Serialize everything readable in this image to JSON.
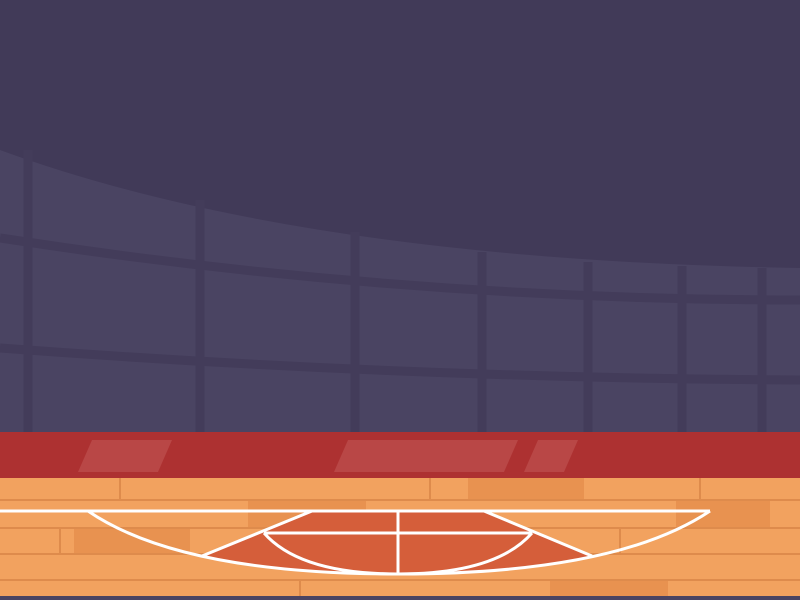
{
  "scene": {
    "name": "basketball-arena-background",
    "colors": {
      "ceiling": "#413a58",
      "stands": "#4a4462",
      "stands_grid": "#433c5a",
      "banner": "#ad3131",
      "banner_highlight": "#b94746",
      "court": "#f2a25f",
      "court_plank_dark": "#e89250",
      "court_seam": "#de8b4c",
      "paint": "#d55e3a",
      "lines": "#ffffff",
      "floor_edge": "#4a4462"
    }
  }
}
